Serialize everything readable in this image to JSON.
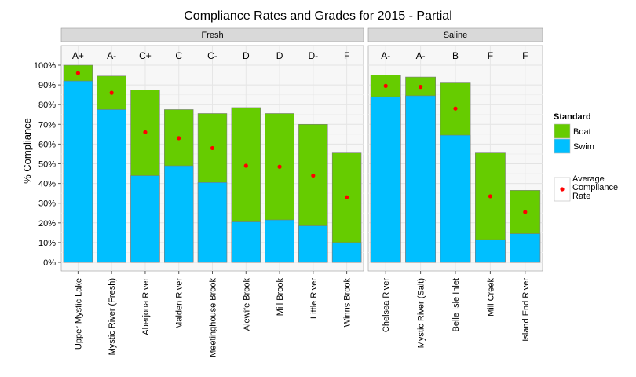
{
  "chart_data": {
    "type": "bar",
    "title": "Compliance Rates and Grades for 2015 - Partial",
    "ylabel": "% Compliance",
    "xlabel": "",
    "ylim": [
      0,
      100
    ],
    "yticks": [
      "0%",
      "10%",
      "20%",
      "30%",
      "40%",
      "50%",
      "60%",
      "70%",
      "80%",
      "90%",
      "100%"
    ],
    "grid": true,
    "colors": {
      "boat": "#66cc00",
      "swim": "#00bfff",
      "average": "#ff0000",
      "panel_bg": "#f7f7f7",
      "strip_bg": "#d9d9d9"
    },
    "legend": {
      "title": "Standard",
      "items": [
        "Boat",
        "Swim"
      ],
      "average_label": [
        "Average",
        "Compliance",
        "Rate"
      ],
      "position": "right"
    },
    "panels": [
      {
        "name": "Fresh",
        "categories": [
          "Upper Mystic Lake",
          "Mystic River (Fresh)",
          "Aberjona River",
          "Malden River",
          "Meetinghouse Brook",
          "Alewife Brook",
          "Mill Brook",
          "Little River",
          "Winns Brook"
        ],
        "grades": [
          "A+",
          "A-",
          "C+",
          "C",
          "C-",
          "D",
          "D",
          "D-",
          "F"
        ],
        "series": [
          {
            "name": "Boat",
            "values": [
              100,
              94.5,
              87.5,
              77.5,
              75.5,
              78.5,
              75.5,
              70,
              55.5
            ]
          },
          {
            "name": "Swim",
            "values": [
              92,
              77.5,
              44,
              49,
              40.5,
              20.5,
              21.5,
              18.5,
              10
            ]
          },
          {
            "name": "Average Compliance Rate",
            "values": [
              96,
              86,
              66,
              63,
              58,
              49,
              48.5,
              44,
              33
            ]
          }
        ]
      },
      {
        "name": "Saline",
        "categories": [
          "Chelsea River",
          "Mystic River (Salt)",
          "Belle Isle Inlet",
          "Mill Creek",
          "Island End River"
        ],
        "grades": [
          "A-",
          "A-",
          "B",
          "F",
          "F"
        ],
        "series": [
          {
            "name": "Boat",
            "values": [
              95,
              94,
              91,
              55.5,
              36.5
            ]
          },
          {
            "name": "Swim",
            "values": [
              84,
              84.5,
              64.5,
              11.5,
              14.5
            ]
          },
          {
            "name": "Average Compliance Rate",
            "values": [
              89.5,
              89,
              78,
              33.5,
              25.5
            ]
          }
        ]
      }
    ]
  }
}
